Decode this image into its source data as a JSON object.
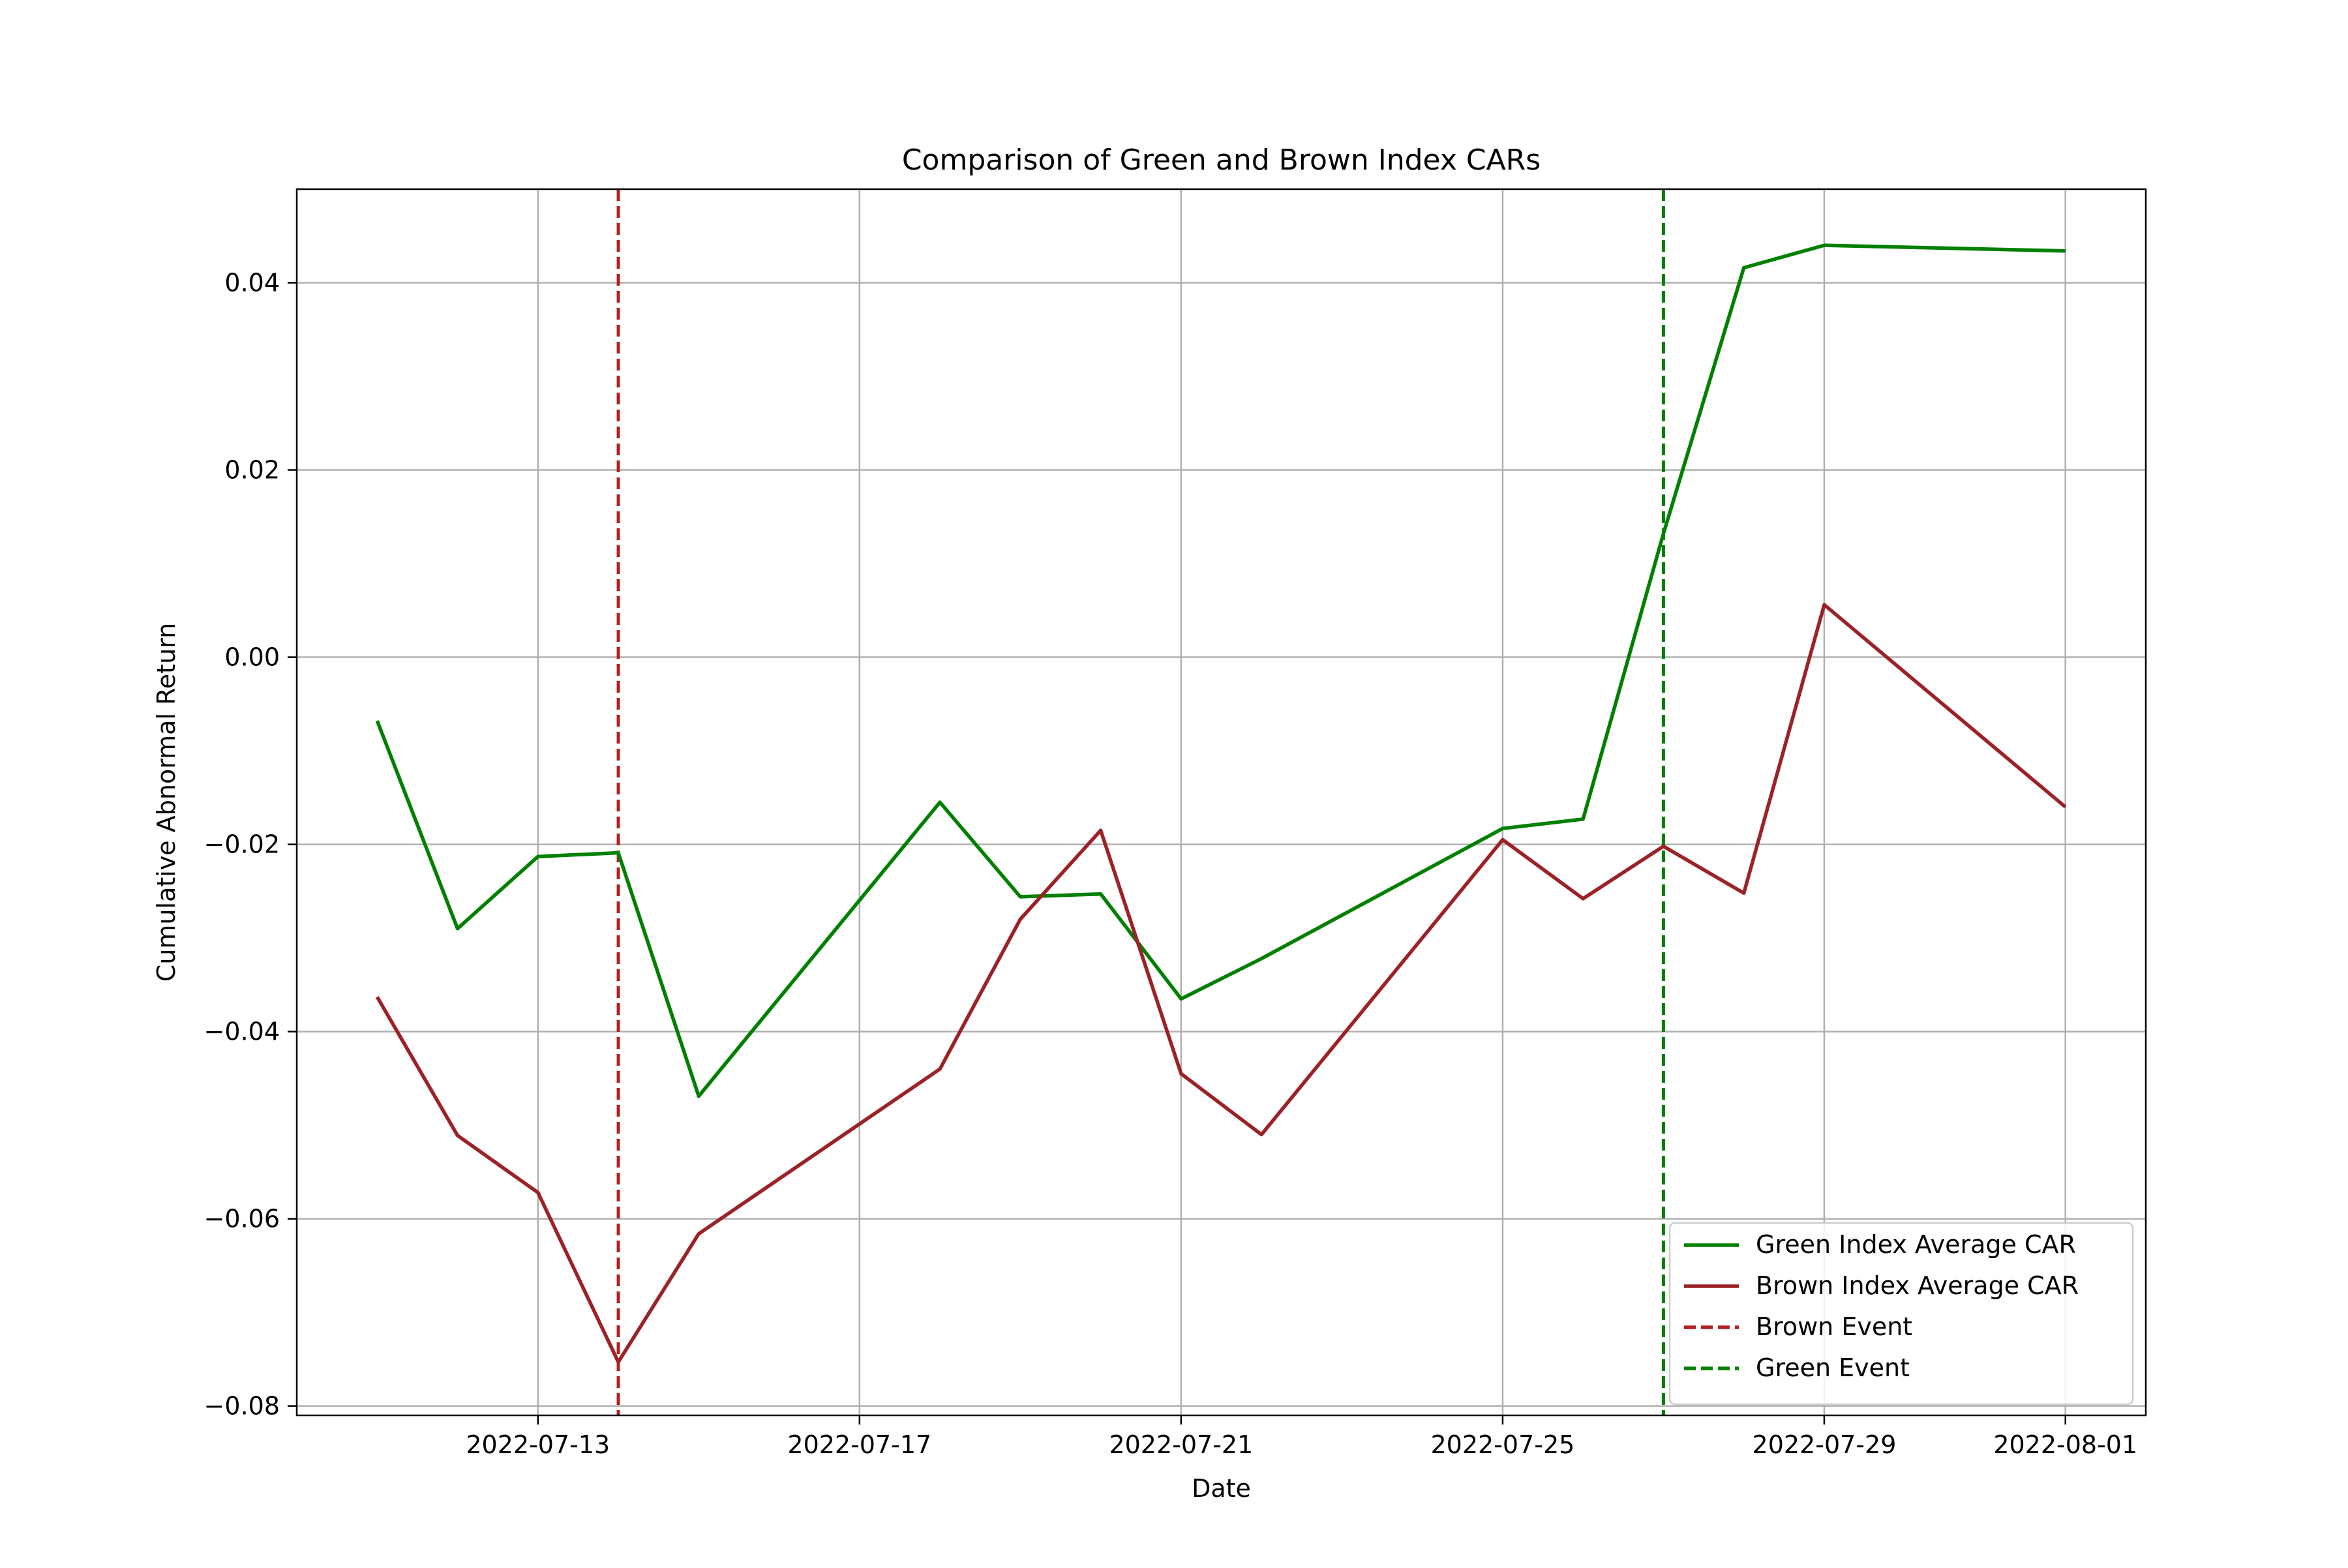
{
  "chart_data": {
    "type": "line",
    "title": "Comparison of Green and Brown Index CARs",
    "xlabel": "Date",
    "ylabel": "Cumulative Abnormal Return",
    "x_axis_type": "date",
    "xlim": [
      "2022-07-10",
      "2022-08-02"
    ],
    "ylim": [
      -0.081,
      0.05
    ],
    "x_ticks": [
      "2022-07-13",
      "2022-07-17",
      "2022-07-21",
      "2022-07-25",
      "2022-07-29",
      "2022-08-01"
    ],
    "y_ticks": [
      -0.08,
      -0.06,
      -0.04,
      -0.02,
      0.0,
      0.02,
      0.04
    ],
    "y_tick_labels": [
      "−0.08",
      "−0.06",
      "−0.04",
      "−0.02",
      "0.00",
      "0.02",
      "0.04"
    ],
    "grid": true,
    "legend_position": "lower-right",
    "series": [
      {
        "name": "Green Index Average CAR",
        "color": "#008000",
        "style": "solid",
        "points": [
          {
            "x": "2022-07-11",
            "y": -0.0068
          },
          {
            "x": "2022-07-12",
            "y": -0.029
          },
          {
            "x": "2022-07-13",
            "y": -0.0213
          },
          {
            "x": "2022-07-14",
            "y": -0.0209
          },
          {
            "x": "2022-07-15",
            "y": -0.0469
          },
          {
            "x": "2022-07-18",
            "y": -0.0155
          },
          {
            "x": "2022-07-19",
            "y": -0.0256
          },
          {
            "x": "2022-07-20",
            "y": -0.0253
          },
          {
            "x": "2022-07-21",
            "y": -0.0365
          },
          {
            "x": "2022-07-22",
            "y": -0.0322
          },
          {
            "x": "2022-07-25",
            "y": -0.0183
          },
          {
            "x": "2022-07-26",
            "y": -0.0173
          },
          {
            "x": "2022-07-27",
            "y": 0.0132
          },
          {
            "x": "2022-07-28",
            "y": 0.0416
          },
          {
            "x": "2022-07-29",
            "y": 0.044
          },
          {
            "x": "2022-08-01",
            "y": 0.0434
          }
        ]
      },
      {
        "name": "Brown Index Average CAR",
        "color": "#9b2226",
        "style": "solid",
        "points": [
          {
            "x": "2022-07-11",
            "y": -0.0363
          },
          {
            "x": "2022-07-12",
            "y": -0.0511
          },
          {
            "x": "2022-07-13",
            "y": -0.0572
          },
          {
            "x": "2022-07-14",
            "y": -0.0753
          },
          {
            "x": "2022-07-15",
            "y": -0.0616
          },
          {
            "x": "2022-07-18",
            "y": -0.044
          },
          {
            "x": "2022-07-19",
            "y": -0.028
          },
          {
            "x": "2022-07-20",
            "y": -0.0185
          },
          {
            "x": "2022-07-21",
            "y": -0.0445
          },
          {
            "x": "2022-07-22",
            "y": -0.051
          },
          {
            "x": "2022-07-25",
            "y": -0.0195
          },
          {
            "x": "2022-07-26",
            "y": -0.0258
          },
          {
            "x": "2022-07-27",
            "y": -0.0202
          },
          {
            "x": "2022-07-28",
            "y": -0.0252
          },
          {
            "x": "2022-07-29",
            "y": 0.0056
          },
          {
            "x": "2022-08-01",
            "y": -0.016
          }
        ]
      }
    ],
    "event_lines": [
      {
        "name": "Brown Event",
        "x": "2022-07-14",
        "color": "#b22222",
        "style": "dashed"
      },
      {
        "name": "Green Event",
        "x": "2022-07-27",
        "color": "#008000",
        "style": "dashed"
      }
    ]
  }
}
